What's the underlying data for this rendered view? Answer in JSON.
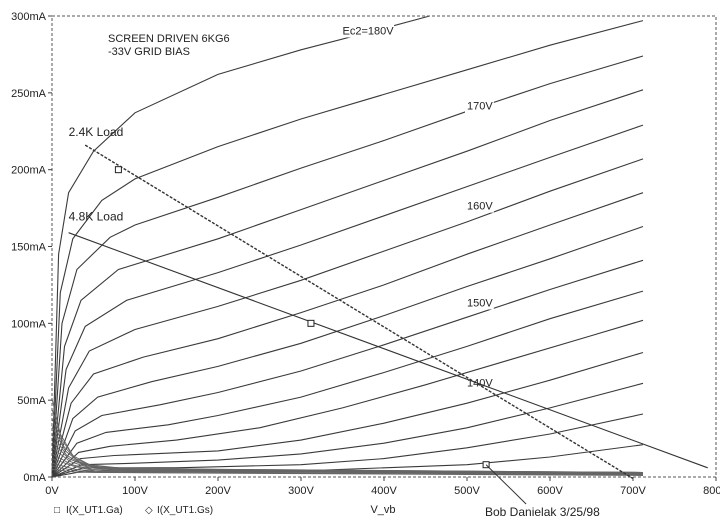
{
  "chart_data": {
    "type": "line",
    "title": "SCREEN DRIVEN 6KG6",
    "subtitle": "-33V GRID BIAS",
    "xlabel": "V_vb",
    "ylabel": "",
    "xlim": [
      0,
      800
    ],
    "ylim": [
      0,
      300
    ],
    "x_ticks": [
      "0V",
      "100V",
      "200V",
      "300V",
      "400V",
      "500V",
      "600V",
      "700V",
      "800V"
    ],
    "y_ticks": [
      "0mA",
      "50mA",
      "100mA",
      "150mA",
      "200mA",
      "250mA",
      "300mA"
    ],
    "grid": false,
    "legend": [
      {
        "marker": "□",
        "label": "I(X_UT1.Ga)"
      },
      {
        "marker": "◇",
        "label": "I(X_UT1.Gs)"
      }
    ],
    "curve_labels": [
      {
        "text": "Ec2=180V",
        "x": 350,
        "y": 288
      },
      {
        "text": "170V",
        "x": 500,
        "y": 239
      },
      {
        "text": "160V",
        "x": 500,
        "y": 174
      },
      {
        "text": "150V",
        "x": 500,
        "y": 111
      },
      {
        "text": "140V",
        "x": 500,
        "y": 59
      }
    ],
    "load_lines": [
      {
        "label": "2.4K Load",
        "label_x": 20,
        "label_y": 222,
        "points": [
          [
            40,
            216
          ],
          [
            700,
            -1
          ]
        ]
      },
      {
        "label": "4.8K Load",
        "label_x": 20,
        "label_y": 167,
        "points": [
          [
            20,
            159
          ],
          [
            790,
            6
          ]
        ]
      }
    ],
    "operating_points": [
      {
        "x": 80,
        "y": 200
      },
      {
        "x": 312,
        "y": 100
      },
      {
        "x": 523,
        "y": 8
      }
    ],
    "anode_series": [
      {
        "name": "180V",
        "values": [
          [
            0,
            0
          ],
          [
            8,
            145
          ],
          [
            20,
            185
          ],
          [
            50,
            212
          ],
          [
            100,
            237
          ],
          [
            200,
            262
          ],
          [
            300,
            278
          ],
          [
            400,
            292
          ],
          [
            455,
            300
          ]
        ]
      },
      {
        "name": "",
        "values": [
          [
            0,
            0
          ],
          [
            10,
            120
          ],
          [
            25,
            155
          ],
          [
            60,
            180
          ],
          [
            100,
            194
          ],
          [
            200,
            215
          ],
          [
            300,
            233
          ],
          [
            400,
            249
          ],
          [
            500,
            265
          ],
          [
            600,
            281
          ],
          [
            712,
            297
          ]
        ]
      },
      {
        "name": "170V",
        "values": [
          [
            0,
            0
          ],
          [
            12,
            100
          ],
          [
            30,
            135
          ],
          [
            70,
            156
          ],
          [
            100,
            164
          ],
          [
            200,
            182
          ],
          [
            300,
            201
          ],
          [
            400,
            219
          ],
          [
            500,
            238
          ],
          [
            600,
            256
          ],
          [
            712,
            274
          ]
        ]
      },
      {
        "name": "",
        "values": [
          [
            0,
            0
          ],
          [
            15,
            85
          ],
          [
            35,
            115
          ],
          [
            80,
            135
          ],
          [
            200,
            155
          ],
          [
            300,
            174
          ],
          [
            400,
            193
          ],
          [
            500,
            212
          ],
          [
            600,
            232
          ],
          [
            712,
            252
          ]
        ]
      },
      {
        "name": "",
        "values": [
          [
            0,
            0
          ],
          [
            17,
            70
          ],
          [
            40,
            98
          ],
          [
            90,
            115
          ],
          [
            200,
            133
          ],
          [
            300,
            151
          ],
          [
            400,
            170
          ],
          [
            500,
            189
          ],
          [
            600,
            208
          ],
          [
            712,
            229
          ]
        ]
      },
      {
        "name": "",
        "values": [
          [
            0,
            0
          ],
          [
            20,
            58
          ],
          [
            45,
            82
          ],
          [
            100,
            96
          ],
          [
            200,
            111
          ],
          [
            300,
            128
          ],
          [
            400,
            147
          ],
          [
            500,
            166
          ],
          [
            600,
            186
          ],
          [
            712,
            207
          ]
        ]
      },
      {
        "name": "160V",
        "values": [
          [
            0,
            0
          ],
          [
            23,
            48
          ],
          [
            50,
            67
          ],
          [
            110,
            78
          ],
          [
            200,
            90
          ],
          [
            300,
            107
          ],
          [
            400,
            125
          ],
          [
            500,
            145
          ],
          [
            600,
            164
          ],
          [
            712,
            185
          ]
        ]
      },
      {
        "name": "",
        "values": [
          [
            0,
            0
          ],
          [
            25,
            38
          ],
          [
            55,
            52
          ],
          [
            120,
            62
          ],
          [
            200,
            72
          ],
          [
            300,
            87
          ],
          [
            400,
            105
          ],
          [
            500,
            124
          ],
          [
            600,
            142
          ],
          [
            712,
            163
          ]
        ]
      },
      {
        "name": "",
        "values": [
          [
            0,
            0
          ],
          [
            28,
            30
          ],
          [
            60,
            40
          ],
          [
            130,
            47
          ],
          [
            200,
            55
          ],
          [
            300,
            69
          ],
          [
            400,
            86
          ],
          [
            500,
            104
          ],
          [
            600,
            122
          ],
          [
            712,
            141
          ]
        ]
      },
      {
        "name": "150V",
        "values": [
          [
            0,
            0
          ],
          [
            30,
            22
          ],
          [
            65,
            29
          ],
          [
            140,
            34
          ],
          [
            200,
            40
          ],
          [
            300,
            52
          ],
          [
            400,
            68
          ],
          [
            500,
            85
          ],
          [
            600,
            103
          ],
          [
            712,
            121
          ]
        ]
      },
      {
        "name": "",
        "values": [
          [
            0,
            0
          ],
          [
            32,
            16
          ],
          [
            70,
            20
          ],
          [
            150,
            24
          ],
          [
            250,
            32
          ],
          [
            350,
            45
          ],
          [
            450,
            60
          ],
          [
            550,
            76
          ],
          [
            650,
            92
          ],
          [
            712,
            102
          ]
        ]
      },
      {
        "name": "",
        "values": [
          [
            0,
            0
          ],
          [
            34,
            12
          ],
          [
            75,
            14
          ],
          [
            200,
            17
          ],
          [
            300,
            24
          ],
          [
            400,
            35
          ],
          [
            500,
            48
          ],
          [
            600,
            63
          ],
          [
            712,
            81
          ]
        ]
      },
      {
        "name": "140V",
        "values": [
          [
            0,
            0
          ],
          [
            36,
            8
          ],
          [
            100,
            9
          ],
          [
            200,
            11
          ],
          [
            300,
            15
          ],
          [
            400,
            22
          ],
          [
            500,
            32
          ],
          [
            600,
            45
          ],
          [
            712,
            61
          ]
        ]
      },
      {
        "name": "",
        "values": [
          [
            0,
            0
          ],
          [
            38,
            6
          ],
          [
            150,
            6
          ],
          [
            300,
            8
          ],
          [
            400,
            12
          ],
          [
            500,
            19
          ],
          [
            600,
            28
          ],
          [
            712,
            41
          ]
        ]
      },
      {
        "name": "",
        "values": [
          [
            0,
            0
          ],
          [
            40,
            4
          ],
          [
            300,
            4
          ],
          [
            500,
            8
          ],
          [
            600,
            13
          ],
          [
            712,
            21
          ]
        ]
      }
    ],
    "screen_series": [
      {
        "name": "",
        "values": [
          [
            0,
            51
          ],
          [
            10,
            28
          ],
          [
            25,
            14
          ],
          [
            45,
            8
          ],
          [
            80,
            6
          ],
          [
            200,
            5
          ],
          [
            712,
            3
          ]
        ]
      },
      {
        "name": "",
        "values": [
          [
            0,
            44
          ],
          [
            12,
            24
          ],
          [
            28,
            12
          ],
          [
            50,
            7
          ],
          [
            90,
            5.5
          ],
          [
            200,
            5
          ],
          [
            712,
            3
          ]
        ]
      },
      {
        "name": "",
        "values": [
          [
            0,
            38
          ],
          [
            14,
            20
          ],
          [
            32,
            10
          ],
          [
            55,
            6.5
          ],
          [
            100,
            5
          ],
          [
            200,
            4.5
          ],
          [
            712,
            3
          ]
        ]
      },
      {
        "name": "",
        "values": [
          [
            0,
            33
          ],
          [
            16,
            17
          ],
          [
            35,
            9
          ],
          [
            60,
            6
          ],
          [
            110,
            5
          ],
          [
            712,
            2.5
          ]
        ]
      },
      {
        "name": "",
        "values": [
          [
            0,
            28
          ],
          [
            18,
            14
          ],
          [
            38,
            8
          ],
          [
            65,
            5.5
          ],
          [
            120,
            4.5
          ],
          [
            712,
            2.5
          ]
        ]
      },
      {
        "name": "",
        "values": [
          [
            0,
            23
          ],
          [
            20,
            12
          ],
          [
            42,
            7
          ],
          [
            70,
            5
          ],
          [
            130,
            4
          ],
          [
            712,
            2.5
          ]
        ]
      },
      {
        "name": "",
        "values": [
          [
            0,
            19
          ],
          [
            22,
            10
          ],
          [
            45,
            6
          ],
          [
            75,
            4.5
          ],
          [
            140,
            4
          ],
          [
            712,
            2
          ]
        ]
      },
      {
        "name": "",
        "values": [
          [
            0,
            15
          ],
          [
            24,
            8
          ],
          [
            48,
            5
          ],
          [
            80,
            4
          ],
          [
            712,
            2
          ]
        ]
      },
      {
        "name": "",
        "values": [
          [
            0,
            12
          ],
          [
            26,
            7
          ],
          [
            52,
            4
          ],
          [
            90,
            3.5
          ],
          [
            712,
            2
          ]
        ]
      },
      {
        "name": "",
        "values": [
          [
            0,
            9
          ],
          [
            28,
            5
          ],
          [
            56,
            3.5
          ],
          [
            100,
            3
          ],
          [
            712,
            1.5
          ]
        ]
      },
      {
        "name": "",
        "values": [
          [
            0,
            7
          ],
          [
            30,
            4
          ],
          [
            60,
            3
          ],
          [
            712,
            1.5
          ]
        ]
      },
      {
        "name": "",
        "values": [
          [
            0,
            5
          ],
          [
            32,
            3
          ],
          [
            712,
            1
          ]
        ]
      }
    ],
    "annotation": "Bob Danielak  3/25/98"
  }
}
